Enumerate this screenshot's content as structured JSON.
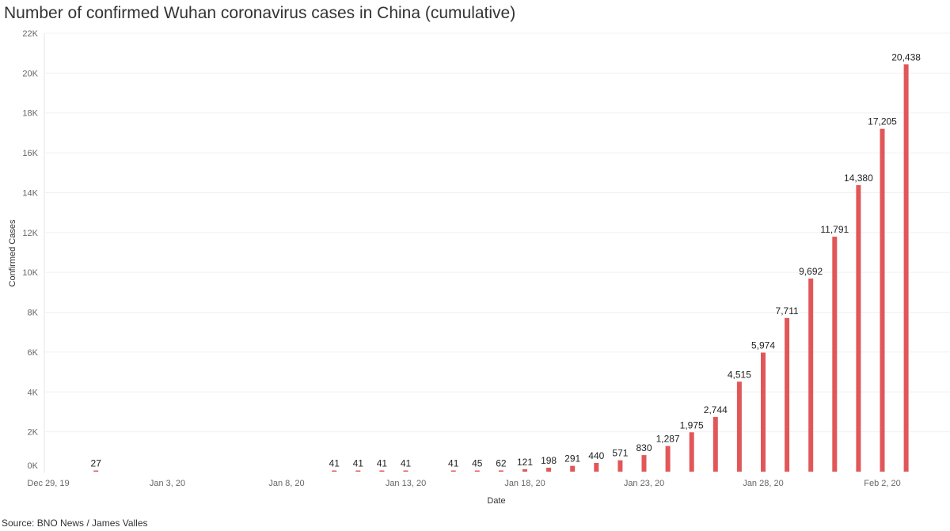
{
  "title": "Number of confirmed Wuhan coronavirus cases in China (cumulative)",
  "source": "Source: BNO News / James Valles",
  "bar_color": "#e15759",
  "chart_data": {
    "type": "bar",
    "title": "Number of confirmed Wuhan coronavirus cases in China (cumulative)",
    "xlabel": "Date",
    "ylabel": "Confirmed Cases",
    "ylim": [
      0,
      22000
    ],
    "grid": true,
    "y_ticks": [
      {
        "value": 0,
        "label": "0K"
      },
      {
        "value": 2000,
        "label": "2K"
      },
      {
        "value": 4000,
        "label": "4K"
      },
      {
        "value": 6000,
        "label": "6K"
      },
      {
        "value": 8000,
        "label": "8K"
      },
      {
        "value": 10000,
        "label": "10K"
      },
      {
        "value": 12000,
        "label": "12K"
      },
      {
        "value": 14000,
        "label": "14K"
      },
      {
        "value": 16000,
        "label": "16K"
      },
      {
        "value": 18000,
        "label": "18K"
      },
      {
        "value": 20000,
        "label": "20K"
      },
      {
        "value": 22000,
        "label": "22K"
      }
    ],
    "x_range_days": [
      0,
      37
    ],
    "x_ticks": [
      {
        "day": 0,
        "label": "Dec 29, 19"
      },
      {
        "day": 5,
        "label": "Jan 3, 20"
      },
      {
        "day": 10,
        "label": "Jan 8, 20"
      },
      {
        "day": 15,
        "label": "Jan 13, 20"
      },
      {
        "day": 20,
        "label": "Jan 18, 20"
      },
      {
        "day": 25,
        "label": "Jan 23, 20"
      },
      {
        "day": 30,
        "label": "Jan 28, 20"
      },
      {
        "day": 35,
        "label": "Feb 2, 20"
      }
    ],
    "points": [
      {
        "day": 2,
        "value": 27,
        "label": "27"
      },
      {
        "day": 12,
        "value": 41,
        "label": "41"
      },
      {
        "day": 13,
        "value": 41,
        "label": "41"
      },
      {
        "day": 14,
        "value": 41,
        "label": "41"
      },
      {
        "day": 15,
        "value": 41,
        "label": "41"
      },
      {
        "day": 17,
        "value": 41,
        "label": "41"
      },
      {
        "day": 18,
        "value": 45,
        "label": "45"
      },
      {
        "day": 19,
        "value": 62,
        "label": "62"
      },
      {
        "day": 20,
        "value": 121,
        "label": "121"
      },
      {
        "day": 21,
        "value": 198,
        "label": "198"
      },
      {
        "day": 22,
        "value": 291,
        "label": "291"
      },
      {
        "day": 23,
        "value": 440,
        "label": "440"
      },
      {
        "day": 24,
        "value": 571,
        "label": "571"
      },
      {
        "day": 25,
        "value": 830,
        "label": "830"
      },
      {
        "day": 26,
        "value": 1287,
        "label": "1,287"
      },
      {
        "day": 27,
        "value": 1975,
        "label": "1,975"
      },
      {
        "day": 28,
        "value": 2744,
        "label": "2,744"
      },
      {
        "day": 29,
        "value": 4515,
        "label": "4,515"
      },
      {
        "day": 30,
        "value": 5974,
        "label": "5,974"
      },
      {
        "day": 31,
        "value": 7711,
        "label": "7,711"
      },
      {
        "day": 32,
        "value": 9692,
        "label": "9,692"
      },
      {
        "day": 33,
        "value": 11791,
        "label": "11,791"
      },
      {
        "day": 34,
        "value": 14380,
        "label": "14,380"
      },
      {
        "day": 35,
        "value": 17205,
        "label": "17,205"
      },
      {
        "day": 36,
        "value": 20438,
        "label": "20,438"
      }
    ]
  }
}
